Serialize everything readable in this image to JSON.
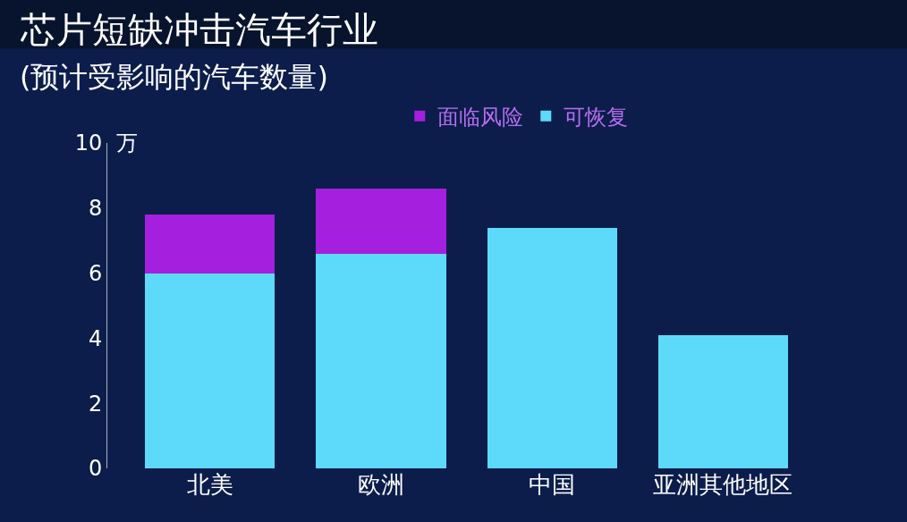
{
  "chart_data": {
    "type": "bar",
    "title": "芯片短缺冲击汽车行业",
    "subtitle": "(预计受影响的汽车数量)",
    "ylabel": "万",
    "categories": [
      "北美",
      "欧洲",
      "中国",
      "亚洲其他地区"
    ],
    "stacked": true,
    "series": [
      {
        "name": "可恢复",
        "color": "#5ddaf9",
        "values": [
          6.0,
          6.6,
          7.4,
          4.1
        ]
      },
      {
        "name": "面临风险",
        "color": "#a420de",
        "values": [
          1.8,
          2.0,
          null,
          null
        ]
      }
    ],
    "ylim": [
      0,
      10
    ],
    "yticks": [
      0,
      2,
      4,
      6,
      8,
      10
    ],
    "grid": false,
    "legend": "top"
  }
}
